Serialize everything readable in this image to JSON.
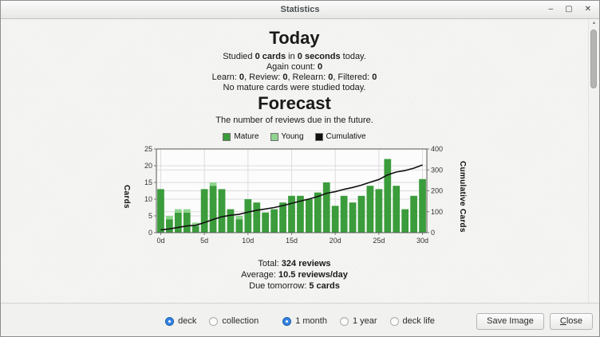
{
  "window": {
    "title": "Statistics",
    "controls": {
      "minimize": "–",
      "maximize": "▢",
      "close": "✕"
    }
  },
  "icons": {
    "scroll_up": "▲"
  },
  "today": {
    "title": "Today",
    "lines": [
      [
        {
          "t": "Studied "
        },
        {
          "t": "0 cards",
          "b": 1
        },
        {
          "t": " in "
        },
        {
          "t": "0 seconds",
          "b": 1
        },
        {
          "t": " today."
        }
      ],
      [
        {
          "t": "Again count: "
        },
        {
          "t": "0",
          "b": 1
        }
      ],
      [
        {
          "t": "Learn: "
        },
        {
          "t": "0",
          "b": 1
        },
        {
          "t": ", Review: "
        },
        {
          "t": "0",
          "b": 1
        },
        {
          "t": ", Relearn: "
        },
        {
          "t": "0",
          "b": 1
        },
        {
          "t": ", Filtered: "
        },
        {
          "t": "0",
          "b": 1
        }
      ],
      [
        {
          "t": "No mature cards were studied today."
        }
      ]
    ]
  },
  "forecast": {
    "title": "Forecast",
    "subtitle": "The number of reviews due in the future.",
    "summary_lines": [
      [
        {
          "t": "Total: "
        },
        {
          "t": "324 reviews",
          "b": 1
        }
      ],
      [
        {
          "t": "Average: "
        },
        {
          "t": "10.5 reviews/day",
          "b": 1
        }
      ],
      [
        {
          "t": "Due tomorrow: "
        },
        {
          "t": "5 cards",
          "b": 1
        }
      ]
    ]
  },
  "chart_data": {
    "type": "bar",
    "title": "Forecast",
    "subtitle": "The number of reviews due in the future.",
    "x_days": [
      0,
      1,
      2,
      3,
      4,
      5,
      6,
      7,
      8,
      9,
      10,
      11,
      12,
      13,
      14,
      15,
      16,
      17,
      18,
      19,
      20,
      21,
      22,
      23,
      24,
      25,
      26,
      27,
      28,
      29,
      30
    ],
    "series": [
      {
        "name": "Mature",
        "type": "bar",
        "color": "#3b9c3b",
        "values": [
          13,
          4,
          6,
          6,
          2,
          13,
          14,
          13,
          7,
          4,
          10,
          9,
          6,
          7,
          9,
          11,
          11,
          10,
          12,
          15,
          8,
          11,
          9,
          11,
          14,
          13,
          22,
          14,
          7,
          11,
          16
        ]
      },
      {
        "name": "Young",
        "type": "bar",
        "color": "#8fd48f",
        "values": [
          0,
          1,
          1,
          1,
          1,
          0,
          1,
          0,
          0,
          1,
          0,
          0,
          0,
          0,
          0,
          0,
          0,
          0,
          0,
          0,
          0,
          0,
          0,
          0,
          0,
          0,
          0,
          0,
          0,
          0,
          0
        ]
      },
      {
        "name": "Cumulative",
        "type": "line",
        "color": "#111111",
        "values": [
          13,
          18,
          25,
          32,
          35,
          48,
          63,
          76,
          83,
          88,
          98,
          107,
          113,
          120,
          129,
          140,
          151,
          161,
          173,
          188,
          196,
          207,
          216,
          227,
          241,
          254,
          276,
          290,
          297,
          308,
          324
        ]
      }
    ],
    "left_axis": {
      "label": "Cards",
      "min": 0,
      "max": 25,
      "ticks": [
        0,
        5,
        10,
        15,
        20,
        25
      ]
    },
    "right_axis": {
      "label": "Cumulative Cards",
      "min": 0,
      "max": 400,
      "ticks": [
        0,
        100,
        200,
        300,
        400
      ]
    },
    "x_axis": {
      "tick_days": [
        0,
        5,
        10,
        15,
        20,
        25,
        30
      ],
      "tick_labels": [
        "0d",
        "5d",
        "10d",
        "15d",
        "20d",
        "25d",
        "30d"
      ]
    },
    "layout": {
      "grid": true,
      "legend_position": "top",
      "plot_bg": "#fcfcfc",
      "grid_color": "#dcdcdc",
      "frame_color": "#555555"
    }
  },
  "footer": {
    "scope_radios": [
      {
        "label": "deck",
        "selected": true
      },
      {
        "label": "collection",
        "selected": false
      }
    ],
    "range_radios": [
      {
        "label": "1 month",
        "selected": true
      },
      {
        "label": "1 year",
        "selected": false
      },
      {
        "label": "deck life",
        "selected": false
      }
    ],
    "save_button": "Save Image",
    "close_button": {
      "underlined": "C",
      "rest": "lose"
    }
  }
}
